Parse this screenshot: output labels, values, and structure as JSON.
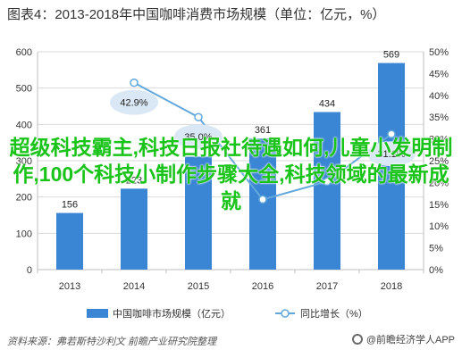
{
  "title": "图表4：2013-2018年中国咖啡消费市场规模（单位：亿元，%）",
  "chart_data": {
    "type": "bar",
    "categories": [
      "2013",
      "2014",
      "2015",
      "2016",
      "2017",
      "2018"
    ],
    "series": [
      {
        "name": "中国咖啡市场规模（亿元）",
        "type": "bar",
        "axis": "left",
        "values": [
          156,
          223,
          311,
          361,
          434,
          569
        ],
        "labels": [
          "156",
          "223",
          "",
          "361",
          "434",
          "569"
        ]
      },
      {
        "name": "同比增长（%）",
        "type": "line",
        "axis": "right",
        "values": [
          null,
          42.9,
          35.0,
          16.1,
          20.2,
          31.1
        ],
        "labels": [
          "",
          "42.9%",
          "35.0%",
          "",
          "",
          "31.1%"
        ]
      }
    ],
    "y_left": {
      "min": 0,
      "max": 600,
      "ticks": [
        "0",
        "100",
        "200",
        "300",
        "400",
        "500",
        "600"
      ]
    },
    "y_right": {
      "min": 0,
      "max": 50,
      "ticks": [
        "0%",
        "5%",
        "10%",
        "15%",
        "20%",
        "25%",
        "30%",
        "35%",
        "40%",
        "45%",
        "50%"
      ]
    },
    "grid": true,
    "legend_position": "bottom",
    "colors": {
      "bar": "#3a85d4",
      "line": "#63a8dc",
      "label_bubble": "#d9e8f4",
      "grid": "#d9d9d9"
    }
  },
  "source": "资料来源：弗若斯特沙利文 前瞻产业研究院整理",
  "brand": "@前瞻经济学人APP",
  "overlay_text": "超级科技霸主,科技日报社待遇如何,儿童小发明制作,100个科技小制作步骤大全,科技领域的最新成就"
}
